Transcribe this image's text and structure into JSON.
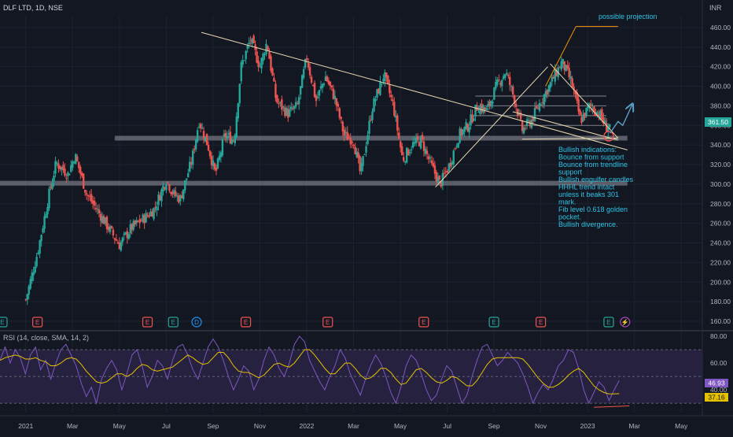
{
  "header": {
    "symbol_title": "DLF LTD, 1D, NSE",
    "currency": "INR"
  },
  "colors": {
    "background": "#131722",
    "grid": "#1e2230",
    "axis_text": "#b2b5be",
    "up": "#26a69a",
    "down": "#ef5350",
    "trendline": "#e8d9b0",
    "projection": "#ff9800",
    "support_zone": "#9598a1",
    "annotation": "#2ec4e6",
    "rsi_line": "#7e57c2",
    "rsi_sma": "#e5c100",
    "rsi_band": "#2a2446",
    "arrow": "#5b9fc6"
  },
  "chart_data": [
    {
      "type": "candlestick",
      "title": "DLF LTD, 1D, NSE",
      "ylabel": "INR",
      "ylim": [
        152,
        472
      ],
      "yticks": [
        160,
        180,
        200,
        220,
        240,
        260,
        280,
        300,
        320,
        340,
        360,
        380,
        400,
        420,
        440,
        460
      ],
      "x_tick_labels": [
        "2021",
        "Mar",
        "May",
        "Jul",
        "Sep",
        "Nov",
        "2022",
        "Mar",
        "May",
        "Jul",
        "Sep",
        "Nov",
        "2023",
        "Mar",
        "May"
      ],
      "x_tick_months": [
        0,
        2,
        4,
        6,
        8,
        10,
        12,
        14,
        16,
        18,
        20,
        22,
        24,
        26,
        28
      ],
      "x_range_months": [
        -1.1,
        28.9
      ],
      "price_path": [
        [
          0,
          182
        ],
        [
          0.5,
          230
        ],
        [
          1,
          290
        ],
        [
          1.3,
          322
        ],
        [
          1.8,
          310
        ],
        [
          2.1,
          330
        ],
        [
          2.6,
          290
        ],
        [
          3.2,
          268
        ],
        [
          4.0,
          238
        ],
        [
          4.5,
          255
        ],
        [
          5.2,
          268
        ],
        [
          5.5,
          275
        ],
        [
          6,
          305
        ],
        [
          6.3,
          290
        ],
        [
          6.6,
          285
        ],
        [
          7.1,
          325
        ],
        [
          7.4,
          365
        ],
        [
          7.8,
          338
        ],
        [
          8.1,
          310
        ],
        [
          8.5,
          350
        ],
        [
          8.9,
          345
        ],
        [
          9.2,
          420
        ],
        [
          9.6,
          448
        ],
        [
          10,
          420
        ],
        [
          10.3,
          445
        ],
        [
          10.7,
          385
        ],
        [
          11.2,
          372
        ],
        [
          11.6,
          380
        ],
        [
          12,
          430
        ],
        [
          12.4,
          385
        ],
        [
          12.8,
          410
        ],
        [
          13.2,
          388
        ],
        [
          13.6,
          350
        ],
        [
          14,
          345
        ],
        [
          14.3,
          310
        ],
        [
          14.8,
          378
        ],
        [
          15.3,
          412
        ],
        [
          15.7,
          380
        ],
        [
          16.1,
          325
        ],
        [
          16.5,
          340
        ],
        [
          16.9,
          345
        ],
        [
          17.3,
          320
        ],
        [
          17.7,
          300
        ],
        [
          18.1,
          320
        ],
        [
          18.5,
          350
        ],
        [
          18.9,
          360
        ],
        [
          19.3,
          380
        ],
        [
          19.7,
          375
        ],
        [
          20.1,
          400
        ],
        [
          20.5,
          415
        ],
        [
          20.9,
          385
        ],
        [
          21.2,
          355
        ],
        [
          21.6,
          365
        ],
        [
          22,
          385
        ],
        [
          22.4,
          402
        ],
        [
          22.9,
          425
        ],
        [
          23.3,
          405
        ],
        [
          23.7,
          365
        ],
        [
          24.1,
          380
        ],
        [
          24.5,
          372
        ],
        [
          24.8,
          358
        ],
        [
          25.0,
          361.5
        ]
      ],
      "last_price": "361.50",
      "trendlines": [
        {
          "name": "long-term-downtrend",
          "points": [
            [
              7.5,
              455
            ],
            [
              25.7,
              335
            ]
          ]
        },
        {
          "name": "rising-trendline",
          "points": [
            [
              17.5,
              297
            ],
            [
              22.3,
              420
            ]
          ]
        },
        {
          "name": "wedge-upper",
          "points": [
            [
              22.4,
              423
            ],
            [
              25.3,
              347
            ]
          ]
        },
        {
          "name": "wedge-lower",
          "points": [
            [
              21.2,
              346
            ],
            [
              25.3,
              347
            ]
          ]
        },
        {
          "name": "falling-support",
          "points": [
            [
              20.8,
              374
            ],
            [
              25.3,
              345
            ]
          ]
        }
      ],
      "projection": {
        "label": "possible projection",
        "from": [
          22.2,
          400
        ],
        "to": [
          23.5,
          461
        ],
        "top_line": [
          [
            23.5,
            461
          ],
          [
            25.3,
            461
          ]
        ]
      },
      "support_zones": [
        {
          "name": "support-347",
          "from_month": 3.8,
          "to_month": 25.7,
          "value": 347
        },
        {
          "name": "support-301",
          "from_month": -1.1,
          "to_month": 25.7,
          "value": 301
        }
      ],
      "fib_levels": [
        {
          "from_month": 19.2,
          "to_month": 24.8,
          "value": 390
        },
        {
          "from_month": 19.2,
          "to_month": 24.8,
          "value": 380
        },
        {
          "from_month": 19.2,
          "to_month": 24.8,
          "value": 370
        },
        {
          "from_month": 19.2,
          "to_month": 24.8,
          "value": 360
        }
      ],
      "annotation_lines": [
        "Bullish indications:",
        "Bounce from support",
        "Bounce from trendline",
        "support",
        "Bullish engulfer candles",
        "HHHL trend intact",
        "unless it beaks 301",
        "mark.",
        "Fib level 0.618 golden",
        "pocket.",
        "Bullish divergence."
      ],
      "event_markers": [
        {
          "month": -1.0,
          "glyph": "E",
          "color": "#26a69a"
        },
        {
          "month": 0.5,
          "glyph": "E",
          "color": "#ef5350"
        },
        {
          "month": 5.2,
          "glyph": "E",
          "color": "#ef5350"
        },
        {
          "month": 6.3,
          "glyph": "E",
          "color": "#26a69a"
        },
        {
          "month": 7.3,
          "glyph": "D",
          "color": "#2196f3"
        },
        {
          "month": 9.4,
          "glyph": "E",
          "color": "#ef5350"
        },
        {
          "month": 12.9,
          "glyph": "E",
          "color": "#ef5350"
        },
        {
          "month": 17.0,
          "glyph": "E",
          "color": "#ef5350"
        },
        {
          "month": 20.0,
          "glyph": "E",
          "color": "#26a69a"
        },
        {
          "month": 22.0,
          "glyph": "E",
          "color": "#ef5350"
        },
        {
          "month": 24.9,
          "glyph": "E",
          "color": "#26a69a"
        },
        {
          "month": 25.6,
          "glyph": "⚡",
          "color": "#ab47bc"
        }
      ]
    },
    {
      "type": "line",
      "title": "RSI (14, close, SMA, 14, 2)",
      "ylim": [
        23,
        83
      ],
      "yticks": [
        40,
        60,
        80
      ],
      "band": [
        30,
        70
      ],
      "mid_line": 50,
      "series": [
        {
          "name": "RSI",
          "values": [
            62,
            72,
            60,
            70,
            64,
            52,
            66,
            72,
            55,
            62,
            48,
            60,
            70,
            74,
            66,
            58,
            45,
            35,
            42,
            30,
            48,
            56,
            62,
            55,
            40,
            52,
            66,
            70,
            58,
            42,
            50,
            62,
            58,
            48,
            62,
            72,
            74,
            66,
            55,
            48,
            60,
            72,
            78,
            72,
            62,
            50,
            40,
            48,
            58,
            54,
            40,
            48,
            62,
            72,
            66,
            56,
            50,
            60,
            74,
            80,
            76,
            62,
            54,
            46,
            40,
            50,
            58,
            70,
            64,
            52,
            44,
            36,
            48,
            58,
            66,
            60,
            50,
            38,
            30,
            42,
            58,
            66,
            62,
            52,
            40,
            32,
            36,
            48,
            58,
            54,
            42,
            30,
            36,
            50,
            62,
            72,
            74,
            66,
            58,
            62,
            68,
            64,
            60,
            52,
            42,
            30,
            38,
            44,
            40,
            48,
            58,
            62,
            70,
            68,
            56,
            40,
            30,
            38,
            46,
            42,
            32,
            40,
            46.93
          ]
        },
        {
          "name": "SMA",
          "values": [
            62,
            64,
            65,
            66,
            65,
            63,
            63,
            64,
            62,
            61,
            58,
            58,
            60,
            63,
            64,
            63,
            59,
            54,
            50,
            46,
            45,
            46,
            49,
            52,
            52,
            50,
            52,
            56,
            59,
            58,
            55,
            54,
            55,
            56,
            57,
            60,
            63,
            66,
            64,
            61,
            59,
            60,
            64,
            68,
            68,
            64,
            58,
            54,
            53,
            53,
            51,
            49,
            51,
            55,
            59,
            60,
            58,
            57,
            60,
            65,
            70,
            70,
            66,
            61,
            56,
            52,
            52,
            56,
            60,
            60,
            56,
            51,
            48,
            49,
            52,
            56,
            56,
            53,
            48,
            44,
            45,
            50,
            55,
            56,
            53,
            49,
            46,
            45,
            47,
            50,
            49,
            46,
            43,
            43,
            47,
            53,
            59,
            63,
            64,
            64,
            64,
            64,
            64,
            63,
            59,
            54,
            49,
            45,
            42,
            42,
            44,
            47,
            51,
            54,
            56,
            53,
            48,
            43,
            40,
            38,
            37,
            37,
            37.16
          ]
        }
      ],
      "rsi_labels": {
        "rsi": "46.93",
        "sma": "37.16"
      },
      "divergence_line": [
        [
          117,
          27
        ],
        [
          124,
          28
        ]
      ]
    }
  ]
}
